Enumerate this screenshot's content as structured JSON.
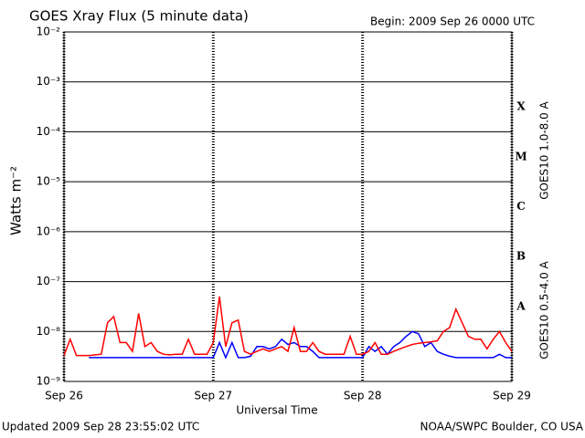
{
  "chart_data": {
    "type": "line",
    "title": "GOES Xray Flux (5 minute data)",
    "subtitle": "Begin:  2009 Sep 26 0000 UTC",
    "y_label": "Watts m⁻²",
    "x_label": "Universal Time",
    "footer_left": "Updated 2009 Sep 28 23:55:02 UTC",
    "footer_right": "NOAA/SWPC Boulder, CO USA",
    "flare_classes": [
      "A",
      "B",
      "C",
      "M",
      "X"
    ],
    "log_scale": true,
    "grid": true,
    "xlim": [
      0,
      72
    ],
    "xticks": [
      {
        "value": 0,
        "label": "Sep 26"
      },
      {
        "value": 24,
        "label": "Sep 27"
      },
      {
        "value": 48,
        "label": "Sep 28"
      },
      {
        "value": 72,
        "label": "Sep 29"
      }
    ],
    "ylim": [
      1e-09,
      0.01
    ],
    "yticks": [
      {
        "value": 1e-09,
        "label": "10⁻⁹"
      },
      {
        "value": 1e-08,
        "label": "10⁻⁸"
      },
      {
        "value": 1e-07,
        "label": "10⁻⁷"
      },
      {
        "value": 1e-06,
        "label": "10⁻⁶"
      },
      {
        "value": 1e-05,
        "label": "10⁻⁵"
      },
      {
        "value": 0.0001,
        "label": "10⁻⁴"
      },
      {
        "value": 0.001,
        "label": "10⁻³"
      },
      {
        "value": 0.01,
        "label": "10⁻²"
      }
    ],
    "x": [
      0,
      1,
      2,
      3,
      4,
      5,
      6,
      7,
      8,
      9,
      10,
      11,
      12,
      13,
      14,
      15,
      16,
      17,
      18,
      19,
      20,
      21,
      22,
      23,
      24,
      25,
      26,
      27,
      28,
      29,
      30,
      31,
      32,
      33,
      34,
      35,
      36,
      37,
      38,
      39,
      40,
      41,
      42,
      43,
      44,
      45,
      46,
      47,
      48,
      49,
      50,
      51,
      52,
      53,
      54,
      55,
      56,
      57,
      58,
      59,
      60,
      61,
      62,
      63,
      64,
      65,
      66,
      67,
      68,
      69,
      70,
      71,
      72
    ],
    "series": [
      {
        "name": "GOES10 0.5-4.0 A",
        "color": "#0000ff",
        "values": [
          null,
          null,
          null,
          null,
          3e-09,
          3e-09,
          3e-09,
          3e-09,
          3e-09,
          3e-09,
          3e-09,
          3e-09,
          3e-09,
          3e-09,
          3e-09,
          3e-09,
          3e-09,
          3e-09,
          3e-09,
          3e-09,
          3e-09,
          3e-09,
          3e-09,
          3e-09,
          3e-09,
          6e-09,
          3e-09,
          6e-09,
          3e-09,
          3e-09,
          3.2e-09,
          5e-09,
          5e-09,
          4.5e-09,
          5e-09,
          7e-09,
          5.5e-09,
          6e-09,
          5e-09,
          5e-09,
          4e-09,
          3e-09,
          3e-09,
          3e-09,
          3e-09,
          3e-09,
          3e-09,
          3e-09,
          3e-09,
          5e-09,
          4e-09,
          5e-09,
          3.5e-09,
          5e-09,
          6e-09,
          8e-09,
          1e-08,
          9e-09,
          5e-09,
          6e-09,
          4e-09,
          3.5e-09,
          3.2e-09,
          3e-09,
          3e-09,
          3e-09,
          3e-09,
          3e-09,
          3e-09,
          3e-09,
          3.5e-09,
          3e-09,
          3e-09
        ]
      },
      {
        "name": "GOES10 1.0-8.0 A",
        "color": "#ff0000",
        "values": [
          3.3e-09,
          7e-09,
          3.3e-09,
          3.3e-09,
          3.3e-09,
          3.4e-09,
          3.5e-09,
          1.5e-08,
          2e-08,
          6e-09,
          6e-09,
          4e-09,
          2.3e-08,
          5e-09,
          6e-09,
          4e-09,
          3.5e-09,
          3.4e-09,
          3.5e-09,
          3.5e-09,
          7e-09,
          3.5e-09,
          3.5e-09,
          3.5e-09,
          6e-09,
          5e-08,
          5e-09,
          1.5e-08,
          1.7e-08,
          4e-09,
          3.5e-09,
          4e-09,
          4.5e-09,
          4e-09,
          4.5e-09,
          5e-09,
          4e-09,
          1.2e-08,
          4e-09,
          4e-09,
          6e-09,
          4e-09,
          3.5e-09,
          3.5e-09,
          3.5e-09,
          3.5e-09,
          8e-09,
          3.5e-09,
          3.5e-09,
          4e-09,
          6e-09,
          3.5e-09,
          3.5e-09,
          4e-09,
          4.5e-09,
          5e-09,
          5.5e-09,
          5.8e-09,
          6e-09,
          6.2e-09,
          6.5e-09,
          1e-08,
          1.2e-08,
          2.8e-08,
          1.5e-08,
          8e-09,
          7e-09,
          7e-09,
          4.5e-09,
          7e-09,
          1e-08,
          6e-09,
          4e-09
        ]
      }
    ]
  }
}
